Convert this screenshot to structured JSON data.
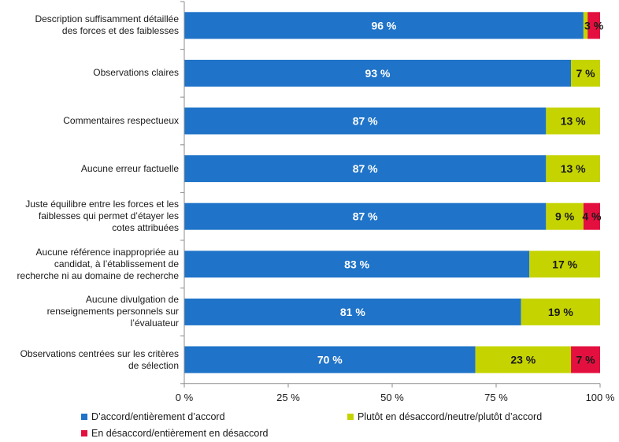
{
  "chart_data": {
    "type": "bar",
    "orientation": "horizontal",
    "stacked": true,
    "categories": [
      "Description suffisamment détaillée\ndes forces et des faiblesses",
      "Observations claires",
      "Commentaires respectueux",
      "Aucune erreur factuelle",
      "Juste équilibre entre les forces et les\nfaiblesses qui permet d’étayer les\ncotes attribuées",
      "Aucune référence inappropriée au\ncandidat, à l’établissement de\nrecherche ni au domaine de recherche",
      "Aucune divulgation de\nrenseignements personnels sur\nl’évaluateur",
      "Observations centrées sur les critères\nde sélection"
    ],
    "series": [
      {
        "name": "D’accord/entièrement d’accord",
        "color": "#1f73c8",
        "values": [
          96,
          93,
          87,
          87,
          87,
          83,
          81,
          70
        ],
        "labels": [
          "96 %",
          "93 %",
          "87 %",
          "87 %",
          "87 %",
          "83 %",
          "81 %",
          "70 %"
        ],
        "label_color": "#ffffff"
      },
      {
        "name": "Plutôt en désaccord/neutre/plutôt d’accord",
        "color": "#c5d400",
        "values": [
          1,
          7,
          13,
          13,
          9,
          17,
          19,
          23
        ],
        "labels": [
          "",
          "7 %",
          "13 %",
          "13 %",
          "9 %",
          "17 %",
          "19 %",
          "23 %"
        ],
        "label_color": "#1a1a1a"
      },
      {
        "name": "En désaccord/entièrement en désaccord",
        "color": "#e3103f",
        "values": [
          3,
          0,
          0,
          0,
          4,
          0,
          0,
          7
        ],
        "labels": [
          "3 %",
          "",
          "",
          "",
          "4 %",
          "",
          "",
          "7 %"
        ],
        "label_color": "#1a1a1a"
      }
    ],
    "x_ticks": [
      0,
      25,
      50,
      75,
      100
    ],
    "x_tick_labels": [
      "0 %",
      "25 %",
      "50 %",
      "75 %",
      "100 %"
    ],
    "xlim": [
      0,
      100
    ],
    "grid": false,
    "legend_position": "bottom"
  }
}
